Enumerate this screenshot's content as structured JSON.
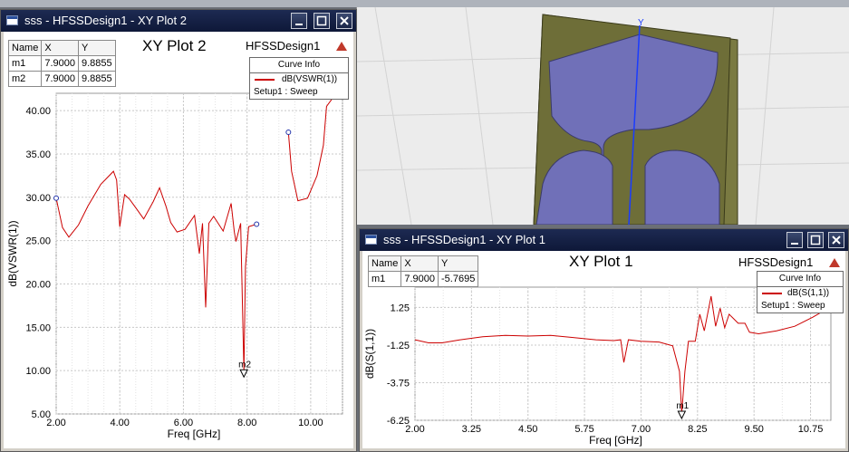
{
  "plot2": {
    "window_title": "sss - HFSSDesign1 - XY Plot 2",
    "chart_title": "XY Plot 2",
    "design_name": "HFSSDesign1",
    "markers_header": [
      "Name",
      "X",
      "Y"
    ],
    "markers": [
      [
        "m1",
        "7.9000",
        "9.8855"
      ],
      [
        "m2",
        "7.9000",
        "9.8855"
      ]
    ],
    "curve_info_header": "Curve Info",
    "curve_label": "dB(VSWR(1))",
    "curve_setup": "Setup1 : Sweep",
    "marker_label": "m2",
    "xlabel": "Freq [GHz]",
    "ylabel": "dB(VSWR(1))",
    "xticks": [
      "2.00",
      "4.00",
      "6.00",
      "8.00",
      "10.00"
    ],
    "yticks": [
      "5.00",
      "10.00",
      "15.00",
      "20.00",
      "25.00",
      "30.00",
      "35.00",
      "40.00"
    ]
  },
  "plot1": {
    "window_title": "sss - HFSSDesign1 - XY Plot 1",
    "chart_title": "XY Plot 1",
    "design_name": "HFSSDesign1",
    "markers_header": [
      "Name",
      "X",
      "Y"
    ],
    "markers": [
      [
        "m1",
        "7.9000",
        "-5.7695"
      ]
    ],
    "curve_info_header": "Curve Info",
    "curve_label": "dB(S(1,1))",
    "curve_setup": "Setup1 : Sweep",
    "marker_label": "m1",
    "xlabel": "Freq [GHz]",
    "ylabel": "dB(S(1,1))",
    "xticks": [
      "2.00",
      "3.25",
      "4.50",
      "5.75",
      "7.00",
      "8.25",
      "9.50",
      "10.75"
    ],
    "yticks": [
      "-6.25",
      "-3.75",
      "-1.25",
      "1.25"
    ]
  },
  "axis_label_3d": "Y",
  "colors": {
    "curve": "#cc0000",
    "patch": "#7070b8",
    "substrate": "#6b6b3a",
    "titlebar": "#0e1838"
  },
  "chart_data": [
    {
      "type": "line",
      "title": "XY Plot 2",
      "xlabel": "Freq [GHz]",
      "ylabel": "dB(VSWR(1))",
      "xlim": [
        2,
        11
      ],
      "ylim": [
        5,
        42
      ],
      "grid": true,
      "legend": "top-right",
      "series": [
        {
          "name": "dB(VSWR(1))",
          "segments": [
            [
              [
                2.0,
                29.9
              ],
              [
                2.2,
                26.5
              ],
              [
                2.4,
                25.4
              ],
              [
                2.7,
                26.8
              ],
              [
                3.0,
                29.0
              ],
              [
                3.4,
                31.5
              ],
              [
                3.8,
                33.0
              ],
              [
                3.9,
                32.0
              ],
              [
                4.0,
                26.6
              ],
              [
                4.15,
                30.3
              ],
              [
                4.3,
                29.8
              ],
              [
                4.5,
                28.8
              ],
              [
                4.75,
                27.5
              ],
              [
                5.05,
                29.5
              ],
              [
                5.25,
                31.1
              ],
              [
                5.45,
                29.0
              ],
              [
                5.6,
                27.1
              ],
              [
                5.8,
                26.0
              ],
              [
                6.05,
                26.3
              ],
              [
                6.35,
                27.9
              ],
              [
                6.5,
                23.5
              ],
              [
                6.6,
                27.0
              ],
              [
                6.7,
                17.3
              ],
              [
                6.8,
                27.0
              ],
              [
                6.95,
                27.8
              ],
              [
                7.25,
                26.1
              ],
              [
                7.5,
                29.3
              ],
              [
                7.6,
                26.0
              ],
              [
                7.65,
                24.9
              ],
              [
                7.8,
                27.0
              ],
              [
                7.9,
                9.9
              ],
              [
                7.95,
                22.0
              ],
              [
                8.05,
                26.6
              ],
              [
                8.3,
                26.9
              ]
            ],
            [
              [
                9.3,
                37.5
              ],
              [
                9.4,
                33.0
              ],
              [
                9.6,
                29.6
              ],
              [
                9.9,
                29.9
              ],
              [
                10.2,
                32.5
              ],
              [
                10.4,
                36.0
              ],
              [
                10.5,
                40.5
              ],
              [
                10.8,
                42.0
              ]
            ]
          ]
        }
      ],
      "markers": [
        {
          "name": "m1",
          "x": 7.9,
          "y": 9.8855
        },
        {
          "name": "m2",
          "x": 7.9,
          "y": 9.8855
        }
      ]
    },
    {
      "type": "line",
      "title": "XY Plot 1",
      "xlabel": "Freq [GHz]",
      "ylabel": "dB(S(1,1))",
      "xlim": [
        2,
        11.2
      ],
      "ylim": [
        -6.25,
        2.6
      ],
      "grid": true,
      "legend": "top-right",
      "series": [
        {
          "name": "dB(S(1,1))",
          "segments": [
            [
              [
                2.0,
                -0.9
              ],
              [
                2.3,
                -1.1
              ],
              [
                2.6,
                -1.1
              ],
              [
                3.0,
                -0.9
              ],
              [
                3.5,
                -0.7
              ],
              [
                4.0,
                -0.6
              ],
              [
                4.5,
                -0.65
              ],
              [
                5.0,
                -0.6
              ],
              [
                5.5,
                -0.75
              ],
              [
                6.0,
                -0.9
              ],
              [
                6.4,
                -0.95
              ],
              [
                6.55,
                -0.9
              ],
              [
                6.62,
                -2.4
              ],
              [
                6.72,
                -0.9
              ],
              [
                7.0,
                -1.0
              ],
              [
                7.4,
                -1.05
              ],
              [
                7.7,
                -1.3
              ],
              [
                7.85,
                -3.0
              ],
              [
                7.9,
                -5.77
              ],
              [
                7.97,
                -3.0
              ],
              [
                8.05,
                -1.0
              ],
              [
                8.2,
                -1.0
              ],
              [
                8.3,
                0.8
              ],
              [
                8.4,
                -0.3
              ],
              [
                8.55,
                2.0
              ],
              [
                8.65,
                0.0
              ],
              [
                8.75,
                1.2
              ],
              [
                8.85,
                -0.1
              ],
              [
                8.95,
                0.8
              ],
              [
                9.15,
                0.2
              ],
              [
                9.3,
                0.2
              ],
              [
                9.4,
                -0.4
              ],
              [
                9.6,
                -0.5
              ],
              [
                10.0,
                -0.3
              ],
              [
                10.4,
                0.0
              ],
              [
                10.8,
                0.6
              ],
              [
                11.2,
                1.3
              ]
            ]
          ]
        }
      ],
      "markers": [
        {
          "name": "m1",
          "x": 7.9,
          "y": -5.7695
        }
      ]
    }
  ]
}
